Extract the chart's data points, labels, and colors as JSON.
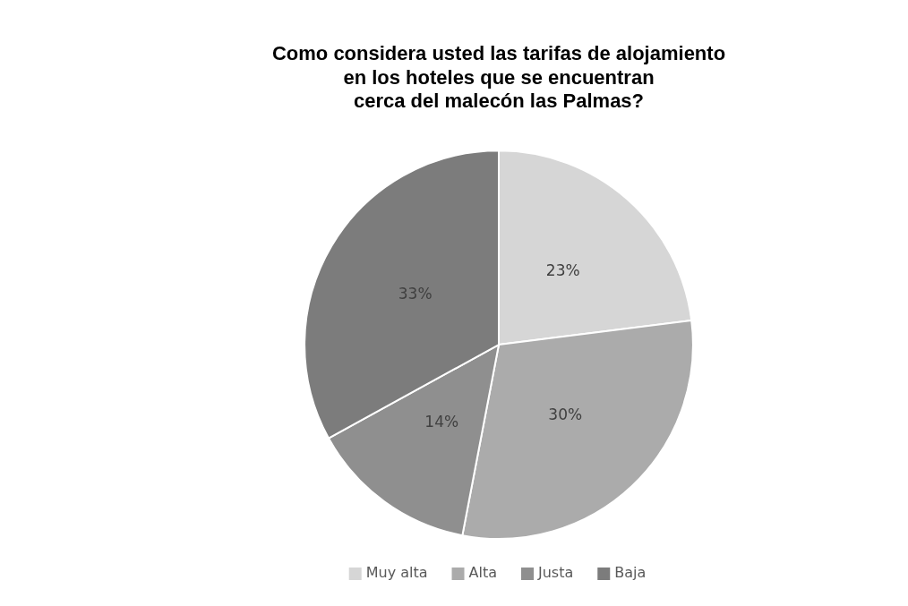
{
  "chart_data": {
    "type": "pie",
    "title": "Como considera usted las tarifas de alojamiento\nen los hoteles que se encuentran\ncerca del malecón las Palmas?",
    "categories": [
      "Muy alta",
      "Alta",
      "Justa",
      "Baja"
    ],
    "values": [
      23,
      30,
      14,
      33
    ],
    "colors": [
      "#d6d6d6",
      "#ababab",
      "#8f8f8f",
      "#7c7c7c"
    ],
    "value_labels": [
      "23%",
      "30%",
      "14%",
      "33%"
    ],
    "legend": "bottom"
  }
}
